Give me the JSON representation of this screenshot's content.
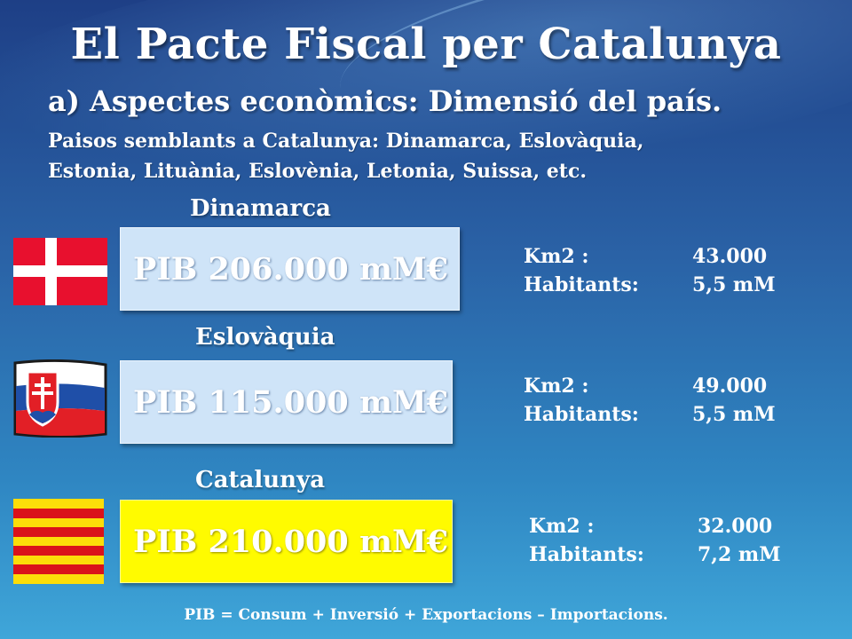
{
  "title": "El Pacte Fiscal per Catalunya",
  "subtitle": "a) Aspectes econòmics: Dimensió del país.",
  "intro_line1": "Paisos semblants a Catalunya: Dinamarca, Eslovàquia,",
  "intro_line2": "Estonia, Lituània, Eslovènia, Letonia, Suissa, etc.",
  "countries": [
    {
      "name": "Dinamarca",
      "pib": "PIB 206.000 mM€",
      "km2_label": "Km2 :",
      "km2_value": "43.000",
      "hab_label": "Habitants:",
      "hab_value": "5,5 mM",
      "flag_icon": "denmark-flag-icon"
    },
    {
      "name": "Eslovàquia",
      "pib": "PIB 115.000 mM€",
      "km2_label": "Km2 :",
      "km2_value": "49.000",
      "hab_label": "Habitants:",
      "hab_value": "5,5 mM",
      "flag_icon": "slovakia-flag-icon"
    },
    {
      "name": "Catalunya",
      "pib": "PIB 210.000 mM€",
      "km2_label": "Km2 :",
      "km2_value": "32.000",
      "hab_label": "Habitants:",
      "hab_value": "7,2 mM",
      "flag_icon": "catalonia-flag-icon"
    }
  ],
  "footer": "PIB = Consum + Inversió + Exportacions – Importacions.",
  "colors": {
    "box_light": "#cfe4f8",
    "box_highlight": "#fffb00",
    "denmark_red": "#e8102e",
    "catalonia_yellow": "#fcdd09",
    "catalonia_red": "#da121a"
  }
}
